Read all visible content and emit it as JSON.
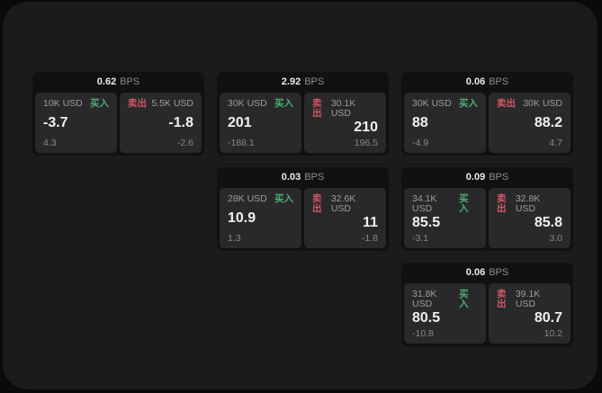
{
  "colors": {
    "background": "#0a0a0b",
    "panel": "#1b1b1d",
    "card": "#111112",
    "tile": "#29292b",
    "buy_green": "#4caf72",
    "sell_red": "#d25765"
  },
  "labels": {
    "buy": "买入",
    "sell": "卖出",
    "bps_suffix": "BPS"
  },
  "cards": [
    {
      "bps": "0.62",
      "buy": {
        "size": "10K USD",
        "price": "-3.7",
        "delta": "4.3"
      },
      "sell": {
        "size": "5.5K USD",
        "price": "-1.8",
        "delta": "-2.6"
      }
    },
    {
      "bps": "2.92",
      "buy": {
        "size": "30K USD",
        "price": "201",
        "delta": "-188.1"
      },
      "sell": {
        "size": "30.1K USD",
        "price": "210",
        "delta": "196.5"
      }
    },
    {
      "bps": "0.06",
      "buy": {
        "size": "30K USD",
        "price": "88",
        "delta": "-4.9"
      },
      "sell": {
        "size": "30K USD",
        "price": "88.2",
        "delta": "4.7"
      }
    },
    {
      "bps": "0.03",
      "buy": {
        "size": "28K USD",
        "price": "10.9",
        "delta": "1.3"
      },
      "sell": {
        "size": "32.6K USD",
        "price": "11",
        "delta": "-1.8"
      }
    },
    {
      "bps": "0.09",
      "buy": {
        "size": "34.1K USD",
        "price": "85.5",
        "delta": "-3.1"
      },
      "sell": {
        "size": "32.8K USD",
        "price": "85.8",
        "delta": "3.0"
      }
    },
    {
      "bps": "0.06",
      "buy": {
        "size": "31.8K USD",
        "price": "80.5",
        "delta": "-10.8"
      },
      "sell": {
        "size": "39.1K USD",
        "price": "80.7",
        "delta": "10.2"
      }
    }
  ]
}
